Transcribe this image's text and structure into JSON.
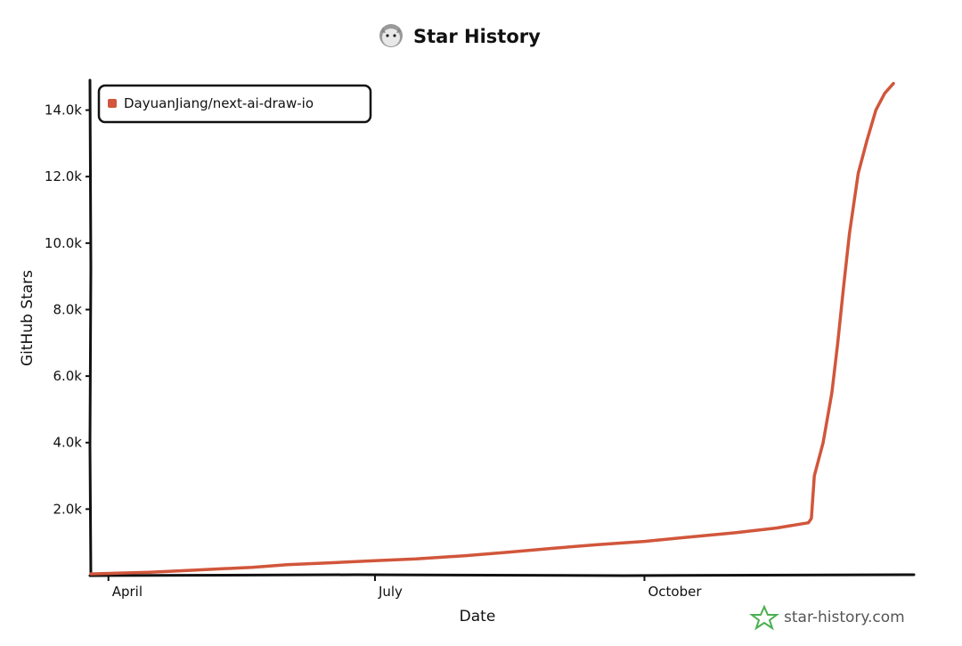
{
  "chart_data": {
    "type": "line",
    "title": "Star History",
    "xlabel": "Date",
    "ylabel": "GitHub Stars",
    "x_ticks": [
      "April",
      "July",
      "October"
    ],
    "x_tick_dates": [
      "2025-04-01",
      "2025-07-01",
      "2025-10-01"
    ],
    "xlim": [
      "2025-03-26",
      "2026-01-01"
    ],
    "y_ticks": [
      "2.0k",
      "4.0k",
      "6.0k",
      "8.0k",
      "10.0k",
      "12.0k",
      "14.0k"
    ],
    "y_tick_values": [
      2000,
      4000,
      6000,
      8000,
      10000,
      12000,
      14000
    ],
    "ylim": [
      0,
      14900
    ],
    "grid": false,
    "legend_position": "top-left",
    "series": [
      {
        "name": "DayuanJiang/next-ai-draw-io",
        "color": "#d1563b",
        "x": [
          "2025-03-26",
          "2025-04-15",
          "2025-05-01",
          "2025-05-20",
          "2025-06-01",
          "2025-06-15",
          "2025-07-01",
          "2025-07-15",
          "2025-08-01",
          "2025-08-15",
          "2025-09-01",
          "2025-09-15",
          "2025-10-01",
          "2025-10-15",
          "2025-11-01",
          "2025-11-15",
          "2025-11-26",
          "2025-11-27",
          "2025-11-28",
          "2025-12-01",
          "2025-12-04",
          "2025-12-06",
          "2025-12-08",
          "2025-12-10",
          "2025-12-13",
          "2025-12-16",
          "2025-12-19",
          "2025-12-22",
          "2025-12-25"
        ],
        "y": [
          50,
          100,
          170,
          250,
          330,
          380,
          450,
          500,
          600,
          700,
          830,
          930,
          1030,
          1150,
          1290,
          1430,
          1590,
          1720,
          3000,
          4000,
          5500,
          7000,
          8700,
          10300,
          12100,
          13100,
          14000,
          14500,
          14800
        ]
      }
    ]
  },
  "watermark": {
    "text": "star-history.com",
    "icon": "star-outline-icon",
    "icon_color": "#4caf50"
  },
  "title_icon": "cat-avatar-icon"
}
